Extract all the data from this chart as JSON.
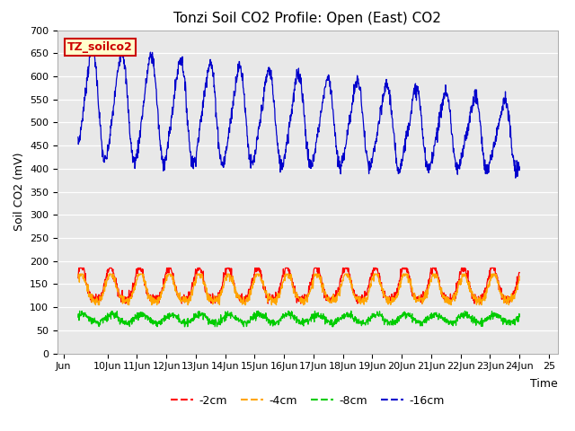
{
  "title": "Tonzi Soil CO2 Profile: Open (East) CO2",
  "ylabel": "Soil CO2 (mV)",
  "xlabel": "Time",
  "ylim": [
    0,
    700
  ],
  "yticks": [
    0,
    50,
    100,
    150,
    200,
    250,
    300,
    350,
    400,
    450,
    500,
    550,
    600,
    650,
    700
  ],
  "x_labels": [
    "Jun",
    "10Jun",
    "11Jun",
    "12Jun",
    "13Jun",
    "14Jun",
    "15Jun",
    "16Jun",
    "17Jun",
    "18Jun",
    "19Jun",
    "20Jun",
    "21Jun",
    "22Jun",
    "23Jun",
    "24Jun",
    "25"
  ],
  "x_positions": [
    -0.5,
    1,
    2,
    3,
    4,
    5,
    6,
    7,
    8,
    9,
    10,
    11,
    12,
    13,
    14,
    15,
    16
  ],
  "xlim": [
    -0.7,
    16.3
  ],
  "plot_bg": "#e8e8e8",
  "fig_bg": "#ffffff",
  "grid_color": "#ffffff",
  "c_red": "#ff0000",
  "c_orange": "#ffa500",
  "c_green": "#00cc00",
  "c_blue": "#0000cc",
  "tag_text": "TZ_soilco2",
  "tag_bg": "#ffffcc",
  "tag_border": "#cc0000",
  "title_fontsize": 11,
  "label_fontsize": 9,
  "tick_fontsize": 8
}
